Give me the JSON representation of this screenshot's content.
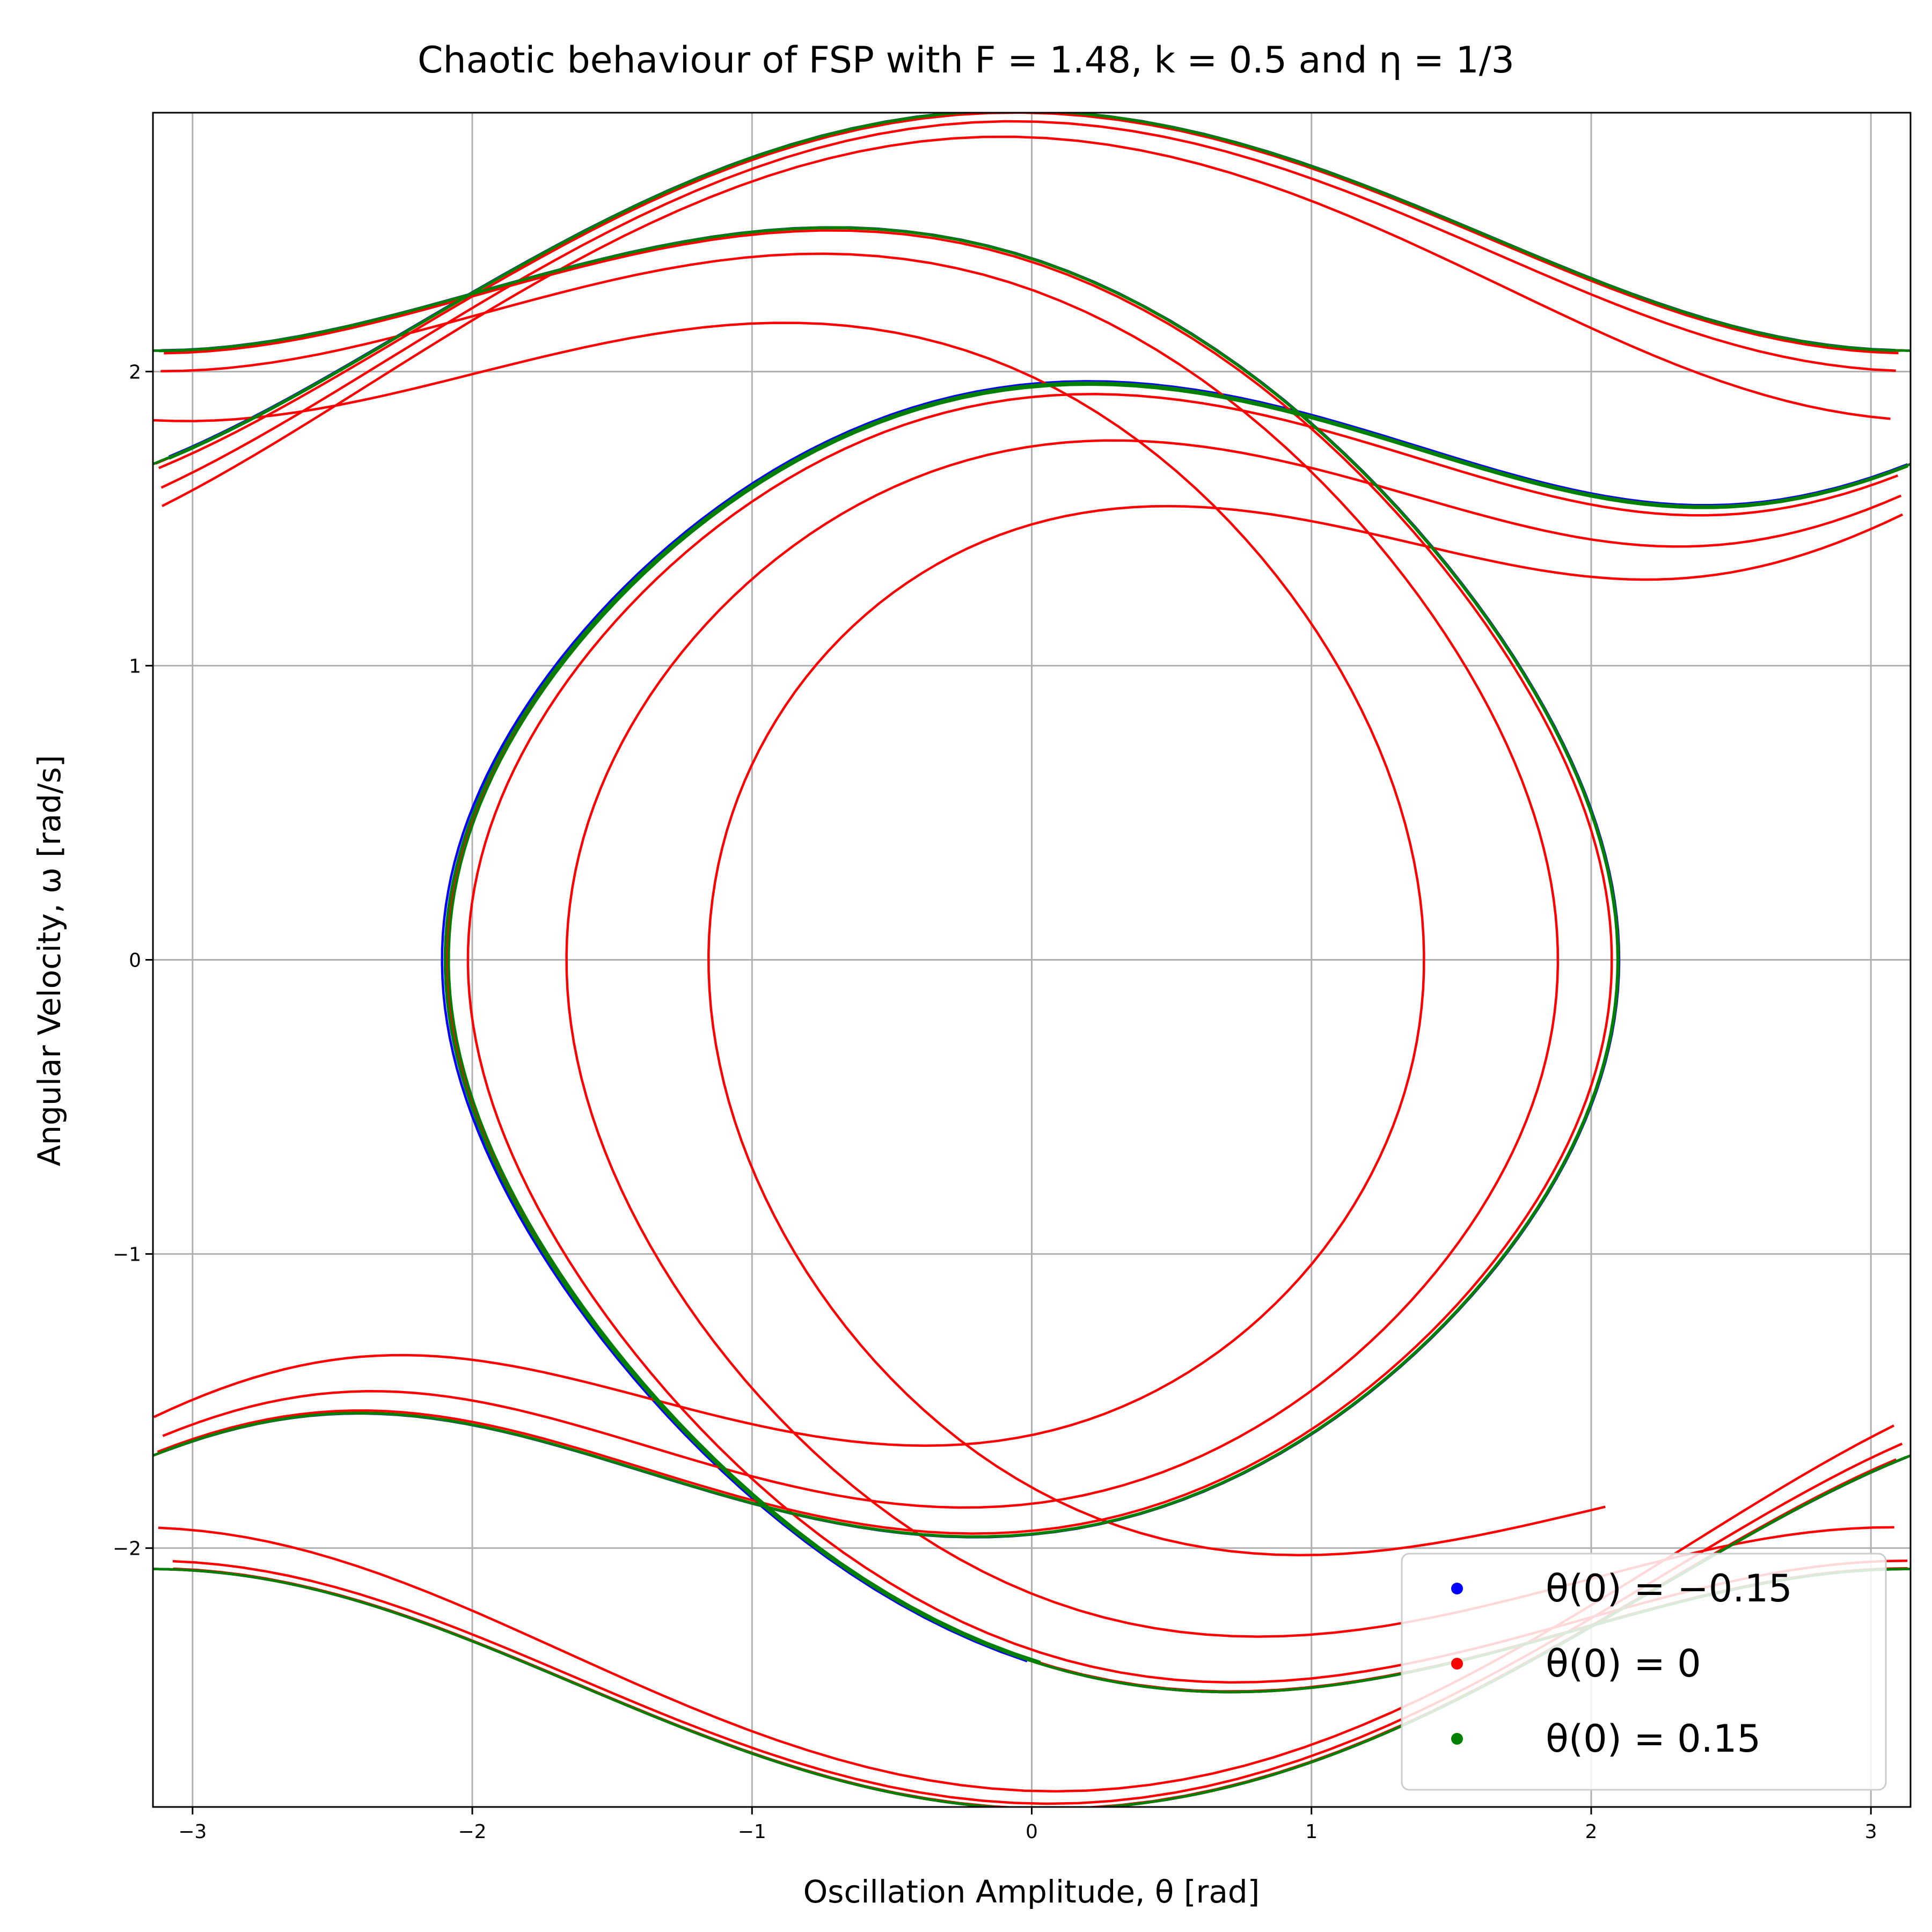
{
  "chart_data": {
    "type": "line",
    "title": "Chaotic behaviour of FSP with F = 1.48, k = 0.5 and η = 1/3",
    "xlabel": "Oscillation Amplitude, θ [rad]",
    "ylabel": "Angular Velocity, ω [rad/s]",
    "xlim": [
      -3.1416,
      3.1416
    ],
    "ylim": [
      -2.88,
      2.88
    ],
    "xticks": [
      -3,
      -2,
      -1,
      0,
      1,
      2,
      3
    ],
    "yticks": [
      -2,
      -1,
      0,
      1,
      2
    ],
    "xtick_labels": [
      "−3",
      "−2",
      "−1",
      "0",
      "1",
      "2",
      "3"
    ],
    "ytick_labels": [
      "−2",
      "−1",
      "0",
      "1",
      "2"
    ],
    "grid": true,
    "legend_position": "lower-right",
    "series": [
      {
        "name": "θ(0) = −0.15",
        "color": "#0000ff",
        "theta0": -0.15
      },
      {
        "name": "θ(0) = 0",
        "color": "#ff0000",
        "theta0": 0
      },
      {
        "name": "θ(0) = 0.15",
        "color": "#008000",
        "theta0": 0.15
      }
    ]
  }
}
